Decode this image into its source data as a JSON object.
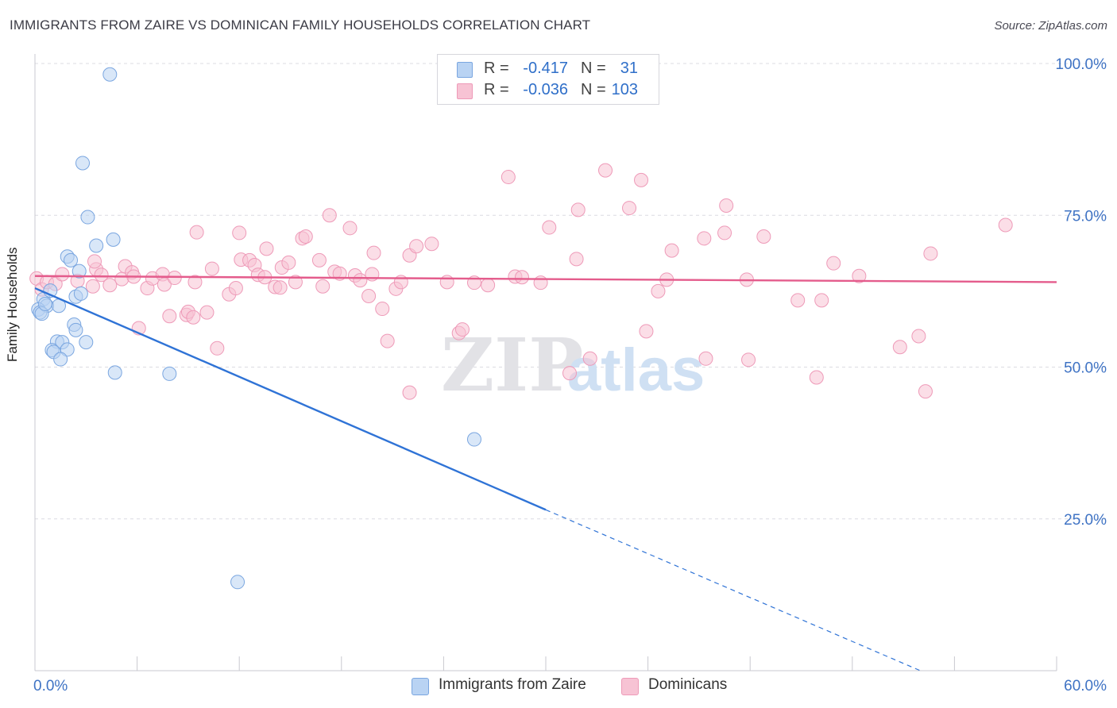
{
  "title": "IMMIGRANTS FROM ZAIRE VS DOMINICAN FAMILY HOUSEHOLDS CORRELATION CHART",
  "source": "Source: ZipAtlas.com",
  "legend": {
    "rows": [
      {
        "r_label": "R =",
        "r_value": "-0.417",
        "n_label": "N =",
        "n_value": "31"
      },
      {
        "r_label": "R =",
        "r_value": "-0.036",
        "n_label": "N =",
        "n_value": "103"
      }
    ]
  },
  "bottom_legend": {
    "series1": "Immigrants from Zaire",
    "series2": "Dominicans"
  },
  "colors": {
    "blue_fill": "#b9d3f3",
    "blue_stroke": "#7aa6e0",
    "blue_line": "#2f73d6",
    "pink_fill": "#f7c3d4",
    "pink_stroke": "#ee9ab8",
    "pink_line": "#e45c8c",
    "tick_label": "#3f73c4",
    "grid": "#dcdce2"
  },
  "chart_data": {
    "type": "scatter",
    "title": "IMMIGRANTS FROM ZAIRE VS DOMINICAN FAMILY HOUSEHOLDS CORRELATION CHART",
    "xlabel": "",
    "ylabel": "Family Households",
    "xlim": [
      0,
      60
    ],
    "ylim": [
      0,
      100
    ],
    "x_tick_labels": [
      "0.0%",
      "60.0%"
    ],
    "y_tick_labels": [
      "25.0%",
      "50.0%",
      "75.0%",
      "100.0%"
    ],
    "y_ticks": [
      25,
      50,
      75,
      100
    ],
    "grid": true,
    "legend_position": "top-center",
    "watermark": "ZIPatlas",
    "series": [
      {
        "name": "Immigrants from Zaire",
        "color": "blue",
        "points": [
          [
            4.4,
            98.2
          ],
          [
            2.8,
            83.6
          ],
          [
            3.1,
            74.7
          ],
          [
            4.6,
            71.0
          ],
          [
            3.6,
            70.0
          ],
          [
            1.9,
            68.2
          ],
          [
            2.1,
            67.6
          ],
          [
            2.6,
            65.8
          ],
          [
            0.5,
            61.2
          ],
          [
            2.4,
            61.6
          ],
          [
            2.7,
            62.1
          ],
          [
            0.7,
            60.1
          ],
          [
            0.2,
            59.5
          ],
          [
            0.3,
            59.0
          ],
          [
            0.4,
            58.8
          ],
          [
            1.4,
            60.1
          ],
          [
            2.3,
            57.0
          ],
          [
            2.4,
            56.1
          ],
          [
            1.3,
            54.2
          ],
          [
            1.6,
            54.1
          ],
          [
            3.0,
            54.1
          ],
          [
            1.0,
            52.8
          ],
          [
            1.1,
            52.5
          ],
          [
            1.9,
            52.9
          ],
          [
            1.5,
            51.3
          ],
          [
            4.7,
            49.1
          ],
          [
            7.9,
            48.9
          ],
          [
            25.8,
            38.1
          ],
          [
            11.9,
            14.6
          ],
          [
            0.6,
            60.4
          ],
          [
            0.9,
            62.6
          ]
        ],
        "trend": {
          "x0": 0,
          "y0": 63.0,
          "x1": 30,
          "y1": 26.5,
          "dash_to_x": 52,
          "dash_to_y": 0
        }
      },
      {
        "name": "Dominicans",
        "color": "pink",
        "points": [
          [
            0.1,
            64.6
          ],
          [
            0.4,
            62.8
          ],
          [
            0.7,
            64.0
          ],
          [
            1.2,
            63.7
          ],
          [
            2.5,
            64.2
          ],
          [
            3.6,
            66.1
          ],
          [
            3.9,
            65.2
          ],
          [
            3.5,
            67.4
          ],
          [
            4.4,
            63.5
          ],
          [
            5.1,
            64.5
          ],
          [
            5.3,
            66.6
          ],
          [
            5.7,
            65.6
          ],
          [
            6.6,
            63.0
          ],
          [
            6.9,
            64.6
          ],
          [
            7.5,
            65.3
          ],
          [
            7.6,
            63.6
          ],
          [
            8.2,
            64.7
          ],
          [
            8.9,
            58.6
          ],
          [
            9.0,
            59.1
          ],
          [
            9.3,
            58.2
          ],
          [
            9.4,
            64.0
          ],
          [
            9.5,
            72.2
          ],
          [
            10.1,
            59.0
          ],
          [
            10.4,
            66.2
          ],
          [
            10.7,
            53.1
          ],
          [
            11.4,
            62.0
          ],
          [
            11.8,
            63.0
          ],
          [
            12.1,
            67.7
          ],
          [
            12.6,
            67.6
          ],
          [
            12.9,
            66.8
          ],
          [
            12.0,
            72.1
          ],
          [
            13.1,
            65.2
          ],
          [
            13.5,
            64.8
          ],
          [
            13.6,
            69.5
          ],
          [
            14.1,
            63.2
          ],
          [
            14.5,
            66.4
          ],
          [
            14.9,
            67.2
          ],
          [
            15.3,
            64.0
          ],
          [
            15.7,
            71.2
          ],
          [
            15.9,
            71.5
          ],
          [
            16.7,
            67.6
          ],
          [
            16.9,
            63.3
          ],
          [
            17.3,
            75.0
          ],
          [
            17.6,
            65.7
          ],
          [
            17.9,
            65.4
          ],
          [
            18.5,
            72.9
          ],
          [
            18.8,
            65.1
          ],
          [
            19.1,
            64.3
          ],
          [
            19.6,
            61.7
          ],
          [
            19.9,
            68.8
          ],
          [
            20.4,
            59.6
          ],
          [
            20.7,
            54.3
          ],
          [
            21.2,
            62.9
          ],
          [
            21.5,
            64.0
          ],
          [
            22.0,
            68.4
          ],
          [
            22.4,
            69.9
          ],
          [
            23.3,
            70.3
          ],
          [
            22.0,
            45.8
          ],
          [
            24.2,
            64.0
          ],
          [
            24.9,
            55.6
          ],
          [
            25.1,
            56.2
          ],
          [
            25.8,
            63.9
          ],
          [
            26.6,
            63.5
          ],
          [
            27.8,
            81.3
          ],
          [
            28.2,
            64.9
          ],
          [
            28.6,
            64.8
          ],
          [
            29.7,
            63.9
          ],
          [
            30.2,
            73.0
          ],
          [
            31.4,
            49.0
          ],
          [
            31.8,
            67.8
          ],
          [
            31.9,
            75.9
          ],
          [
            32.6,
            51.4
          ],
          [
            33.5,
            82.4
          ],
          [
            34.9,
            76.2
          ],
          [
            35.6,
            80.8
          ],
          [
            35.9,
            55.9
          ],
          [
            36.6,
            62.5
          ],
          [
            37.1,
            64.4
          ],
          [
            37.4,
            69.2
          ],
          [
            39.3,
            71.2
          ],
          [
            39.4,
            51.4
          ],
          [
            40.5,
            72.1
          ],
          [
            40.6,
            76.6
          ],
          [
            41.8,
            64.4
          ],
          [
            41.9,
            51.2
          ],
          [
            42.8,
            71.5
          ],
          [
            44.8,
            61.0
          ],
          [
            45.9,
            48.3
          ],
          [
            46.2,
            61.0
          ],
          [
            46.9,
            67.1
          ],
          [
            48.4,
            65.0
          ],
          [
            50.8,
            53.3
          ],
          [
            51.9,
            55.1
          ],
          [
            52.3,
            46.0
          ],
          [
            52.6,
            68.7
          ],
          [
            57.0,
            73.4
          ],
          [
            3.4,
            63.3
          ],
          [
            1.6,
            65.3
          ],
          [
            6.1,
            56.4
          ],
          [
            7.9,
            58.4
          ],
          [
            19.8,
            65.3
          ],
          [
            14.4,
            63.1
          ],
          [
            5.8,
            64.9
          ]
        ],
        "trend": {
          "x0": 0,
          "y0": 65.0,
          "x1": 60,
          "y1": 64.0
        }
      }
    ]
  }
}
